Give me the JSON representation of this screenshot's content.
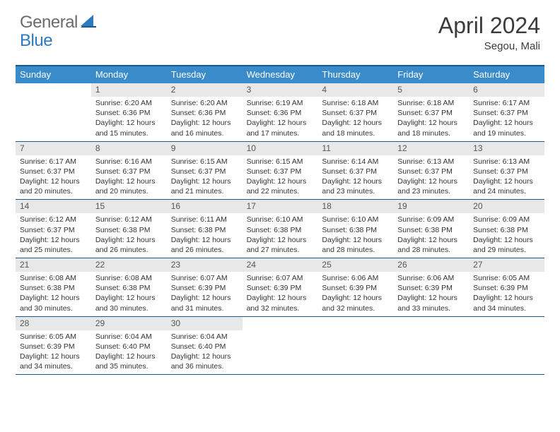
{
  "brand": {
    "part1": "General",
    "part2": "Blue"
  },
  "title": "April 2024",
  "location": "Segou, Mali",
  "colors": {
    "header_bg": "#3a8bc9",
    "border": "#1b5a8e",
    "daynum_bg": "#e8e8e8",
    "text": "#333333",
    "brand_gray": "#6b6b6b",
    "brand_blue": "#2e7ac0"
  },
  "day_names": [
    "Sunday",
    "Monday",
    "Tuesday",
    "Wednesday",
    "Thursday",
    "Friday",
    "Saturday"
  ],
  "weeks": [
    [
      null,
      {
        "n": "1",
        "sr": "6:20 AM",
        "ss": "6:36 PM",
        "dl": "12 hours and 15 minutes."
      },
      {
        "n": "2",
        "sr": "6:20 AM",
        "ss": "6:36 PM",
        "dl": "12 hours and 16 minutes."
      },
      {
        "n": "3",
        "sr": "6:19 AM",
        "ss": "6:36 PM",
        "dl": "12 hours and 17 minutes."
      },
      {
        "n": "4",
        "sr": "6:18 AM",
        "ss": "6:37 PM",
        "dl": "12 hours and 18 minutes."
      },
      {
        "n": "5",
        "sr": "6:18 AM",
        "ss": "6:37 PM",
        "dl": "12 hours and 18 minutes."
      },
      {
        "n": "6",
        "sr": "6:17 AM",
        "ss": "6:37 PM",
        "dl": "12 hours and 19 minutes."
      }
    ],
    [
      {
        "n": "7",
        "sr": "6:17 AM",
        "ss": "6:37 PM",
        "dl": "12 hours and 20 minutes."
      },
      {
        "n": "8",
        "sr": "6:16 AM",
        "ss": "6:37 PM",
        "dl": "12 hours and 20 minutes."
      },
      {
        "n": "9",
        "sr": "6:15 AM",
        "ss": "6:37 PM",
        "dl": "12 hours and 21 minutes."
      },
      {
        "n": "10",
        "sr": "6:15 AM",
        "ss": "6:37 PM",
        "dl": "12 hours and 22 minutes."
      },
      {
        "n": "11",
        "sr": "6:14 AM",
        "ss": "6:37 PM",
        "dl": "12 hours and 23 minutes."
      },
      {
        "n": "12",
        "sr": "6:13 AM",
        "ss": "6:37 PM",
        "dl": "12 hours and 23 minutes."
      },
      {
        "n": "13",
        "sr": "6:13 AM",
        "ss": "6:37 PM",
        "dl": "12 hours and 24 minutes."
      }
    ],
    [
      {
        "n": "14",
        "sr": "6:12 AM",
        "ss": "6:37 PM",
        "dl": "12 hours and 25 minutes."
      },
      {
        "n": "15",
        "sr": "6:12 AM",
        "ss": "6:38 PM",
        "dl": "12 hours and 26 minutes."
      },
      {
        "n": "16",
        "sr": "6:11 AM",
        "ss": "6:38 PM",
        "dl": "12 hours and 26 minutes."
      },
      {
        "n": "17",
        "sr": "6:10 AM",
        "ss": "6:38 PM",
        "dl": "12 hours and 27 minutes."
      },
      {
        "n": "18",
        "sr": "6:10 AM",
        "ss": "6:38 PM",
        "dl": "12 hours and 28 minutes."
      },
      {
        "n": "19",
        "sr": "6:09 AM",
        "ss": "6:38 PM",
        "dl": "12 hours and 28 minutes."
      },
      {
        "n": "20",
        "sr": "6:09 AM",
        "ss": "6:38 PM",
        "dl": "12 hours and 29 minutes."
      }
    ],
    [
      {
        "n": "21",
        "sr": "6:08 AM",
        "ss": "6:38 PM",
        "dl": "12 hours and 30 minutes."
      },
      {
        "n": "22",
        "sr": "6:08 AM",
        "ss": "6:38 PM",
        "dl": "12 hours and 30 minutes."
      },
      {
        "n": "23",
        "sr": "6:07 AM",
        "ss": "6:39 PM",
        "dl": "12 hours and 31 minutes."
      },
      {
        "n": "24",
        "sr": "6:07 AM",
        "ss": "6:39 PM",
        "dl": "12 hours and 32 minutes."
      },
      {
        "n": "25",
        "sr": "6:06 AM",
        "ss": "6:39 PM",
        "dl": "12 hours and 32 minutes."
      },
      {
        "n": "26",
        "sr": "6:06 AM",
        "ss": "6:39 PM",
        "dl": "12 hours and 33 minutes."
      },
      {
        "n": "27",
        "sr": "6:05 AM",
        "ss": "6:39 PM",
        "dl": "12 hours and 34 minutes."
      }
    ],
    [
      {
        "n": "28",
        "sr": "6:05 AM",
        "ss": "6:39 PM",
        "dl": "12 hours and 34 minutes."
      },
      {
        "n": "29",
        "sr": "6:04 AM",
        "ss": "6:40 PM",
        "dl": "12 hours and 35 minutes."
      },
      {
        "n": "30",
        "sr": "6:04 AM",
        "ss": "6:40 PM",
        "dl": "12 hours and 36 minutes."
      },
      null,
      null,
      null,
      null
    ]
  ],
  "labels": {
    "sunrise": "Sunrise:",
    "sunset": "Sunset:",
    "daylight": "Daylight:"
  }
}
